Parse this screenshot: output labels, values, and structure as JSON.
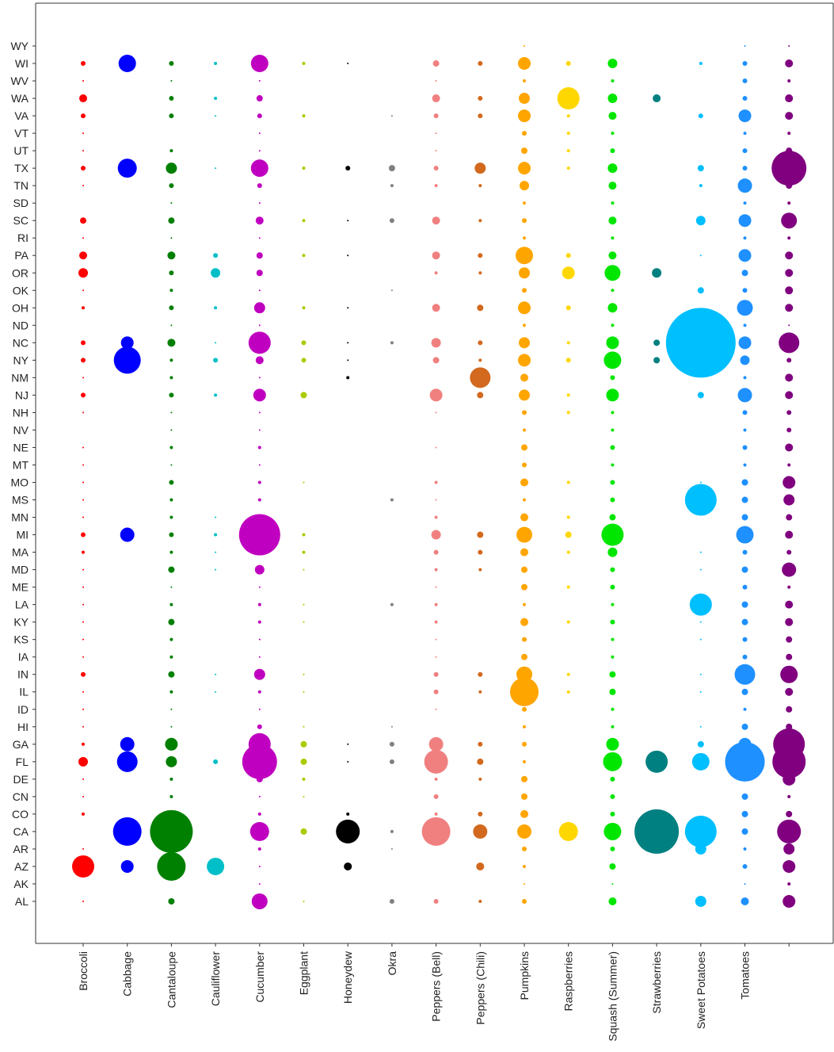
{
  "chart_data": {
    "type": "scatter",
    "title": "",
    "xlabel": "",
    "ylabel": "",
    "grid": false,
    "legend": "none",
    "categories": [
      "Broccoli",
      "Cabbage",
      "Cantaloupe",
      "Cauliflower",
      "Cucumber",
      "Eggplant",
      "Honeydew",
      "Okra",
      "Peppers (Bell)",
      "Peppers (Chili)",
      "Pumpkins",
      "Raspberries",
      "Squash (Summer)",
      "Strawberries",
      "Sweet Potatoes",
      "Tomatoes",
      ""
    ],
    "states": [
      "WY",
      "WI",
      "WV",
      "WA",
      "VA",
      "VT",
      "UT",
      "TX",
      "TN",
      "SD",
      "SC",
      "RI",
      "PA",
      "OR",
      "OK",
      "OH",
      "ND",
      "NC",
      "NY",
      "NM",
      "NJ",
      "NH",
      "NV",
      "NE",
      "MT",
      "MO",
      "MS",
      "MN",
      "MI",
      "MA",
      "MD",
      "ME",
      "LA",
      "KY",
      "KS",
      "IA",
      "IN",
      "IL",
      "ID",
      "HI",
      "GA",
      "FL",
      "DE",
      "CN",
      "CO",
      "CA",
      "AR",
      "AZ",
      "AK",
      "AL"
    ],
    "colors": [
      "#ff0000",
      "#0000ff",
      "#008000",
      "#00bfc8",
      "#c000c0",
      "#a8cc00",
      "#000000",
      "#808080",
      "#f08080",
      "#d2691e",
      "#ffa500",
      "#ffd700",
      "#00e600",
      "#008080",
      "#00bfff",
      "#1e90ff",
      "#800080"
    ],
    "size_scale_note": "",
    "series": [
      {
        "name": "Broccoli",
        "values": {
          "WI": 3,
          "WA": 5,
          "VA": 3,
          "TX": 3,
          "SC": 4,
          "PA": 5,
          "OR": 6,
          "OH": 2,
          "NC": 3,
          "NY": 3,
          "NJ": 3,
          "MI": 3,
          "MA": 2,
          "IN": 3,
          "GA": 2,
          "FL": 6,
          "CO": 2,
          "AZ": 14,
          "AL": 1,
          "DE": 1,
          "CN": 1,
          "MO": 1,
          "MN": 1,
          "MD": 1,
          "LA": 1,
          "IA": 1,
          "IL": 1,
          "ID": 1,
          "KY": 1,
          "KS": 1,
          "MS": 1,
          "ME": 1,
          "NE": 1,
          "TN": 1,
          "VT": 1,
          "WV": 1,
          "UT": 1,
          "RI": 1,
          "NH": 1,
          "NM": 1,
          "MT": 1,
          "AR": 1,
          "HI": 1,
          "OK": 1
        }
      },
      {
        "name": "Cabbage",
        "values": {
          "WI": 11,
          "TX": 12,
          "NC": 8,
          "NY": 17,
          "MI": 9,
          "GA": 9,
          "FL": 13,
          "CA": 18,
          "AZ": 8
        }
      },
      {
        "name": "Cantaloupe",
        "values": {
          "WI": 3,
          "WA": 3,
          "VA": 3,
          "TX": 7,
          "TN": 3,
          "SC": 4,
          "PA": 5,
          "OR": 3,
          "OH": 3,
          "NC": 5,
          "NJ": 3,
          "MO": 3,
          "MI": 3,
          "MD": 4,
          "KY": 4,
          "IN": 4,
          "GA": 8,
          "FL": 7,
          "CA": 27,
          "AZ": 18,
          "AL": 4,
          "UT": 2,
          "SD": 1,
          "RI": 1,
          "OK": 2,
          "ND": 1,
          "NY": 2,
          "NM": 2,
          "NH": 1,
          "NV": 1,
          "NE": 2,
          "MT": 1,
          "MS": 2,
          "MN": 2,
          "MA": 2,
          "ME": 1,
          "LA": 2,
          "KS": 2,
          "IA": 2,
          "IL": 2,
          "ID": 1,
          "HI": 1,
          "DE": 2,
          "CN": 2,
          "CO": 2,
          "AR": 2,
          "WV": 1
        }
      },
      {
        "name": "Cauliflower",
        "values": {
          "WI": 2,
          "WA": 2,
          "PA": 3,
          "OR": 6,
          "OH": 2,
          "NY": 3,
          "NJ": 2,
          "MI": 2,
          "FL": 3,
          "AZ": 11,
          "TX": 1,
          "NC": 1,
          "MN": 1,
          "MA": 1,
          "MD": 1,
          "IN": 1,
          "IL": 1,
          "VA": 1
        }
      },
      {
        "name": "Cucumber",
        "values": {
          "WI": 11,
          "WA": 4,
          "VA": 3,
          "TX": 11,
          "TN": 3,
          "SC": 5,
          "PA": 4,
          "OR": 4,
          "OH": 7,
          "NC": 14,
          "NY": 5,
          "NJ": 8,
          "MI": 26,
          "MD": 6,
          "IN": 7,
          "GA": 14,
          "FL": 22,
          "DE": 4,
          "CA": 12,
          "AL": 10,
          "WV": 1,
          "UT": 1,
          "NE": 2,
          "MO": 2,
          "MS": 2,
          "MN": 2,
          "MA": 2,
          "ME": 1,
          "LA": 2,
          "KY": 2,
          "KS": 1,
          "IA": 1,
          "IL": 2,
          "ID": 1,
          "HI": 3,
          "CO": 2,
          "CN": 1,
          "AR": 2,
          "AZ": 1,
          "NH": 1,
          "NM": 1,
          "NV": 1,
          "MT": 1,
          "AK": 1,
          "RI": 1,
          "OK": 1,
          "ND": 1,
          "SD": 1,
          "VT": 1
        }
      },
      {
        "name": "Eggplant",
        "values": {
          "GA": 4,
          "FL": 4,
          "NJ": 4,
          "CA": 4,
          "NC": 3,
          "NY": 3,
          "WI": 2,
          "TX": 2,
          "SC": 2,
          "PA": 2,
          "OH": 2,
          "MI": 2,
          "MA": 2,
          "VA": 2,
          "DE": 2,
          "AL": 1,
          "MO": 1,
          "MD": 1,
          "HI": 1,
          "IL": 1,
          "IN": 1,
          "CN": 1,
          "KY": 1,
          "LA": 1
        }
      },
      {
        "name": "Honeydew",
        "values": {
          "CA": 15,
          "AZ": 5,
          "TX": 3,
          "NM": 2,
          "CO": 2,
          "WI": 1,
          "FL": 1,
          "NC": 1,
          "SC": 1,
          "GA": 1,
          "PA": 1,
          "OH": 1,
          "NY": 1
        }
      },
      {
        "name": "Okra",
        "values": {
          "TX": 4,
          "SC": 3,
          "GA": 3,
          "FL": 3,
          "NC": 2,
          "LA": 2,
          "MS": 2,
          "AL": 3,
          "VA": 1,
          "CA": 2,
          "AR": 1,
          "TN": 2,
          "OK": 1,
          "HI": 1
        }
      },
      {
        "name": "Peppers (Bell)",
        "values": {
          "CA": 18,
          "FL": 15,
          "GA": 9,
          "NJ": 8,
          "MI": 6,
          "NC": 6,
          "PA": 5,
          "OH": 5,
          "WA": 5,
          "SC": 5,
          "WI": 4,
          "NY": 4,
          "VA": 3,
          "IN": 3,
          "IL": 3,
          "TX": 3,
          "MA": 3,
          "AL": 3,
          "DE": 2,
          "CN": 3,
          "MD": 2,
          "LA": 2,
          "KY": 2,
          "OR": 2,
          "MN": 2,
          "TN": 2,
          "CO": 2,
          "MO": 2,
          "ID": 1,
          "KS": 1,
          "IA": 1,
          "NE": 1,
          "UT": 1,
          "VT": 1,
          "NH": 1,
          "ME": 1,
          "MS": 1,
          "WV": 1
        }
      },
      {
        "name": "Peppers (Chili)",
        "values": {
          "NM": 13,
          "CA": 9,
          "TX": 7,
          "AZ": 5,
          "FL": 4,
          "GA": 3,
          "MI": 4,
          "NJ": 4,
          "OH": 4,
          "NC": 3,
          "WI": 3,
          "WA": 3,
          "VA": 3,
          "TN": 2,
          "SC": 2,
          "PA": 3,
          "OR": 2,
          "NY": 2,
          "IN": 3,
          "MA": 3,
          "IL": 2,
          "CO": 3,
          "DE": 2,
          "MD": 2,
          "AL": 2
        }
      },
      {
        "name": "Pumpkins",
        "values": {
          "IL": 18,
          "IN": 10,
          "MI": 10,
          "PA": 11,
          "OH": 8,
          "NY": 8,
          "CA": 9,
          "TX": 8,
          "WI": 8,
          "WA": 7,
          "VA": 8,
          "OR": 7,
          "NC": 7,
          "TN": 6,
          "NJ": 7,
          "MN": 5,
          "MO": 5,
          "MA": 5,
          "NM": 5,
          "KY": 5,
          "MD": 4,
          "CO": 5,
          "CN": 4,
          "DE": 4,
          "AL": 3,
          "GA": 3,
          "FL": 2,
          "UT": 4,
          "SC": 3,
          "NH": 3,
          "ME": 4,
          "IA": 4,
          "KS": 3,
          "ID": 3,
          "NE": 4,
          "MT": 3,
          "AR": 3,
          "VT": 3,
          "NV": 2,
          "OK": 3,
          "SD": 2,
          "ND": 2,
          "RI": 2,
          "HI": 2,
          "LA": 2,
          "MS": 2,
          "AZ": 2,
          "AK": 1,
          "WV": 2,
          "WY": 1
        }
      },
      {
        "name": "Raspberries",
        "values": {
          "WA": 14,
          "CA": 12,
          "OR": 8,
          "MI": 4,
          "NY": 3,
          "PA": 3,
          "OH": 3,
          "WI": 3,
          "MN": 2,
          "NC": 2,
          "NJ": 2,
          "VA": 2,
          "IN": 2,
          "IL": 2,
          "MA": 2,
          "ME": 2,
          "TX": 2,
          "UT": 2,
          "VT": 2,
          "NH": 2,
          "MO": 2,
          "KY": 2
        }
      },
      {
        "name": "Squash (Summer)",
        "values": {
          "MI": 14,
          "FL": 12,
          "NY": 11,
          "OR": 10,
          "GA": 8,
          "CA": 11,
          "NC": 8,
          "NJ": 8,
          "TX": 6,
          "OH": 6,
          "WI": 6,
          "WA": 6,
          "VA": 5,
          "TN": 5,
          "SC": 5,
          "PA": 5,
          "MA": 6,
          "MN": 4,
          "MO": 3,
          "IN": 4,
          "IL": 4,
          "KY": 3,
          "MD": 3,
          "ME": 3,
          "CN": 3,
          "CO": 3,
          "DE": 3,
          "AR": 3,
          "AL": 5,
          "AZ": 4,
          "UT": 3,
          "NE": 3,
          "NM": 3,
          "NH": 2,
          "NV": 2,
          "VT": 2,
          "OK": 2,
          "KS": 2,
          "IA": 2,
          "ID": 2,
          "HI": 2,
          "LA": 2,
          "MS": 3,
          "MT": 2,
          "ND": 2,
          "SD": 2,
          "RI": 2,
          "WV": 2,
          "AK": 1
        }
      },
      {
        "name": "Strawberries",
        "values": {
          "CA": 28,
          "FL": 14,
          "WA": 5,
          "OR": 6,
          "NC": 4,
          "NY": 4
        }
      },
      {
        "name": "Sweet Potatoes",
        "values": {
          "NC": 44,
          "MS": 20,
          "CA": 20,
          "LA": 14,
          "FL": 11,
          "AL": 7,
          "AR": 7,
          "NJ": 4,
          "SC": 6,
          "TX": 4,
          "GA": 4,
          "OK": 4,
          "VA": 3,
          "WI": 2,
          "KY": 1,
          "MO": 1,
          "TN": 2,
          "MD": 1,
          "PA": 1,
          "HI": 1,
          "IL": 1,
          "IN": 1,
          "MA": 1,
          "KS": 1
        }
      },
      {
        "name": "Tomatoes",
        "values": {
          "FL": 25,
          "IN": 13,
          "VA": 8,
          "TN": 9,
          "SC": 8,
          "PA": 8,
          "OH": 10,
          "NC": 8,
          "NJ": 9,
          "MI": 11,
          "GA": 8,
          "NY": 6,
          "WI": 3,
          "WA": 3,
          "TX": 3,
          "AZ": 3,
          "AL": 5,
          "CA": 4,
          "MO": 4,
          "MD": 4,
          "MS": 4,
          "MN": 4,
          "LA": 4,
          "KY": 4,
          "IL": 4,
          "HI": 4,
          "CO": 4,
          "CN": 4,
          "OR": 4,
          "OK": 3,
          "WV": 3,
          "UT": 3,
          "SD": 2,
          "RI": 2,
          "NE": 3,
          "NH": 3,
          "NV": 2,
          "MT": 2,
          "MA": 3,
          "ME": 3,
          "KS": 3,
          "IA": 3,
          "ID": 2,
          "DE": 2,
          "AR": 2,
          "ND": 2,
          "NM": 2,
          "AK": 1,
          "VT": 2,
          "WY": 1
        }
      },
      {
        "name": "",
        "values": {
          "TX": 22,
          "FL": 21,
          "GA": 20,
          "NC": 13,
          "CA": 15,
          "IN": 11,
          "SC": 10,
          "MD": 9,
          "MO": 8,
          "MS": 7,
          "AR": 7,
          "AZ": 8,
          "DE": 8,
          "AL": 8,
          "WA": 5,
          "WI": 5,
          "VA": 5,
          "PA": 5,
          "OR": 5,
          "OH": 5,
          "OK": 5,
          "NM": 5,
          "NJ": 5,
          "NE": 5,
          "MI": 5,
          "KY": 5,
          "LA": 5,
          "IL": 5,
          "TN": 4,
          "CO": 4,
          "UT": 4,
          "MN": 4,
          "KS": 4,
          "IA": 4,
          "ID": 4,
          "HI": 4,
          "NY": 3,
          "NV": 3,
          "NH": 3,
          "MT": 2,
          "MA": 3,
          "ME": 2,
          "CN": 2,
          "WV": 2,
          "RI": 2,
          "SD": 2,
          "VT": 2,
          "AK": 2,
          "WY": 1,
          "ND": 1
        }
      }
    ]
  }
}
